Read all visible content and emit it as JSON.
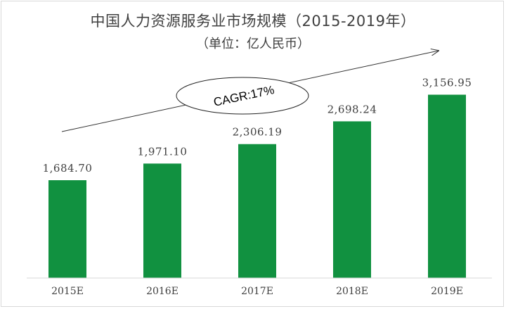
{
  "chart_data": {
    "type": "bar",
    "title": "中国人力资源服务业市场规模（2015-2019年）",
    "subtitle": "（单位：亿人民币）",
    "categories": [
      "2015E",
      "2016E",
      "2017E",
      "2018E",
      "2019E"
    ],
    "values": [
      1684.7,
      1971.1,
      2306.19,
      2698.24,
      3156.95
    ],
    "value_labels": [
      "1,684.70",
      "1,971.10",
      "2,306.19",
      "2,698.24",
      "3,156.95"
    ],
    "annotation": "CAGR:17%",
    "bar_color": "#119140",
    "ylim": [
      0,
      3500
    ],
    "grid": false,
    "legend": "none"
  }
}
